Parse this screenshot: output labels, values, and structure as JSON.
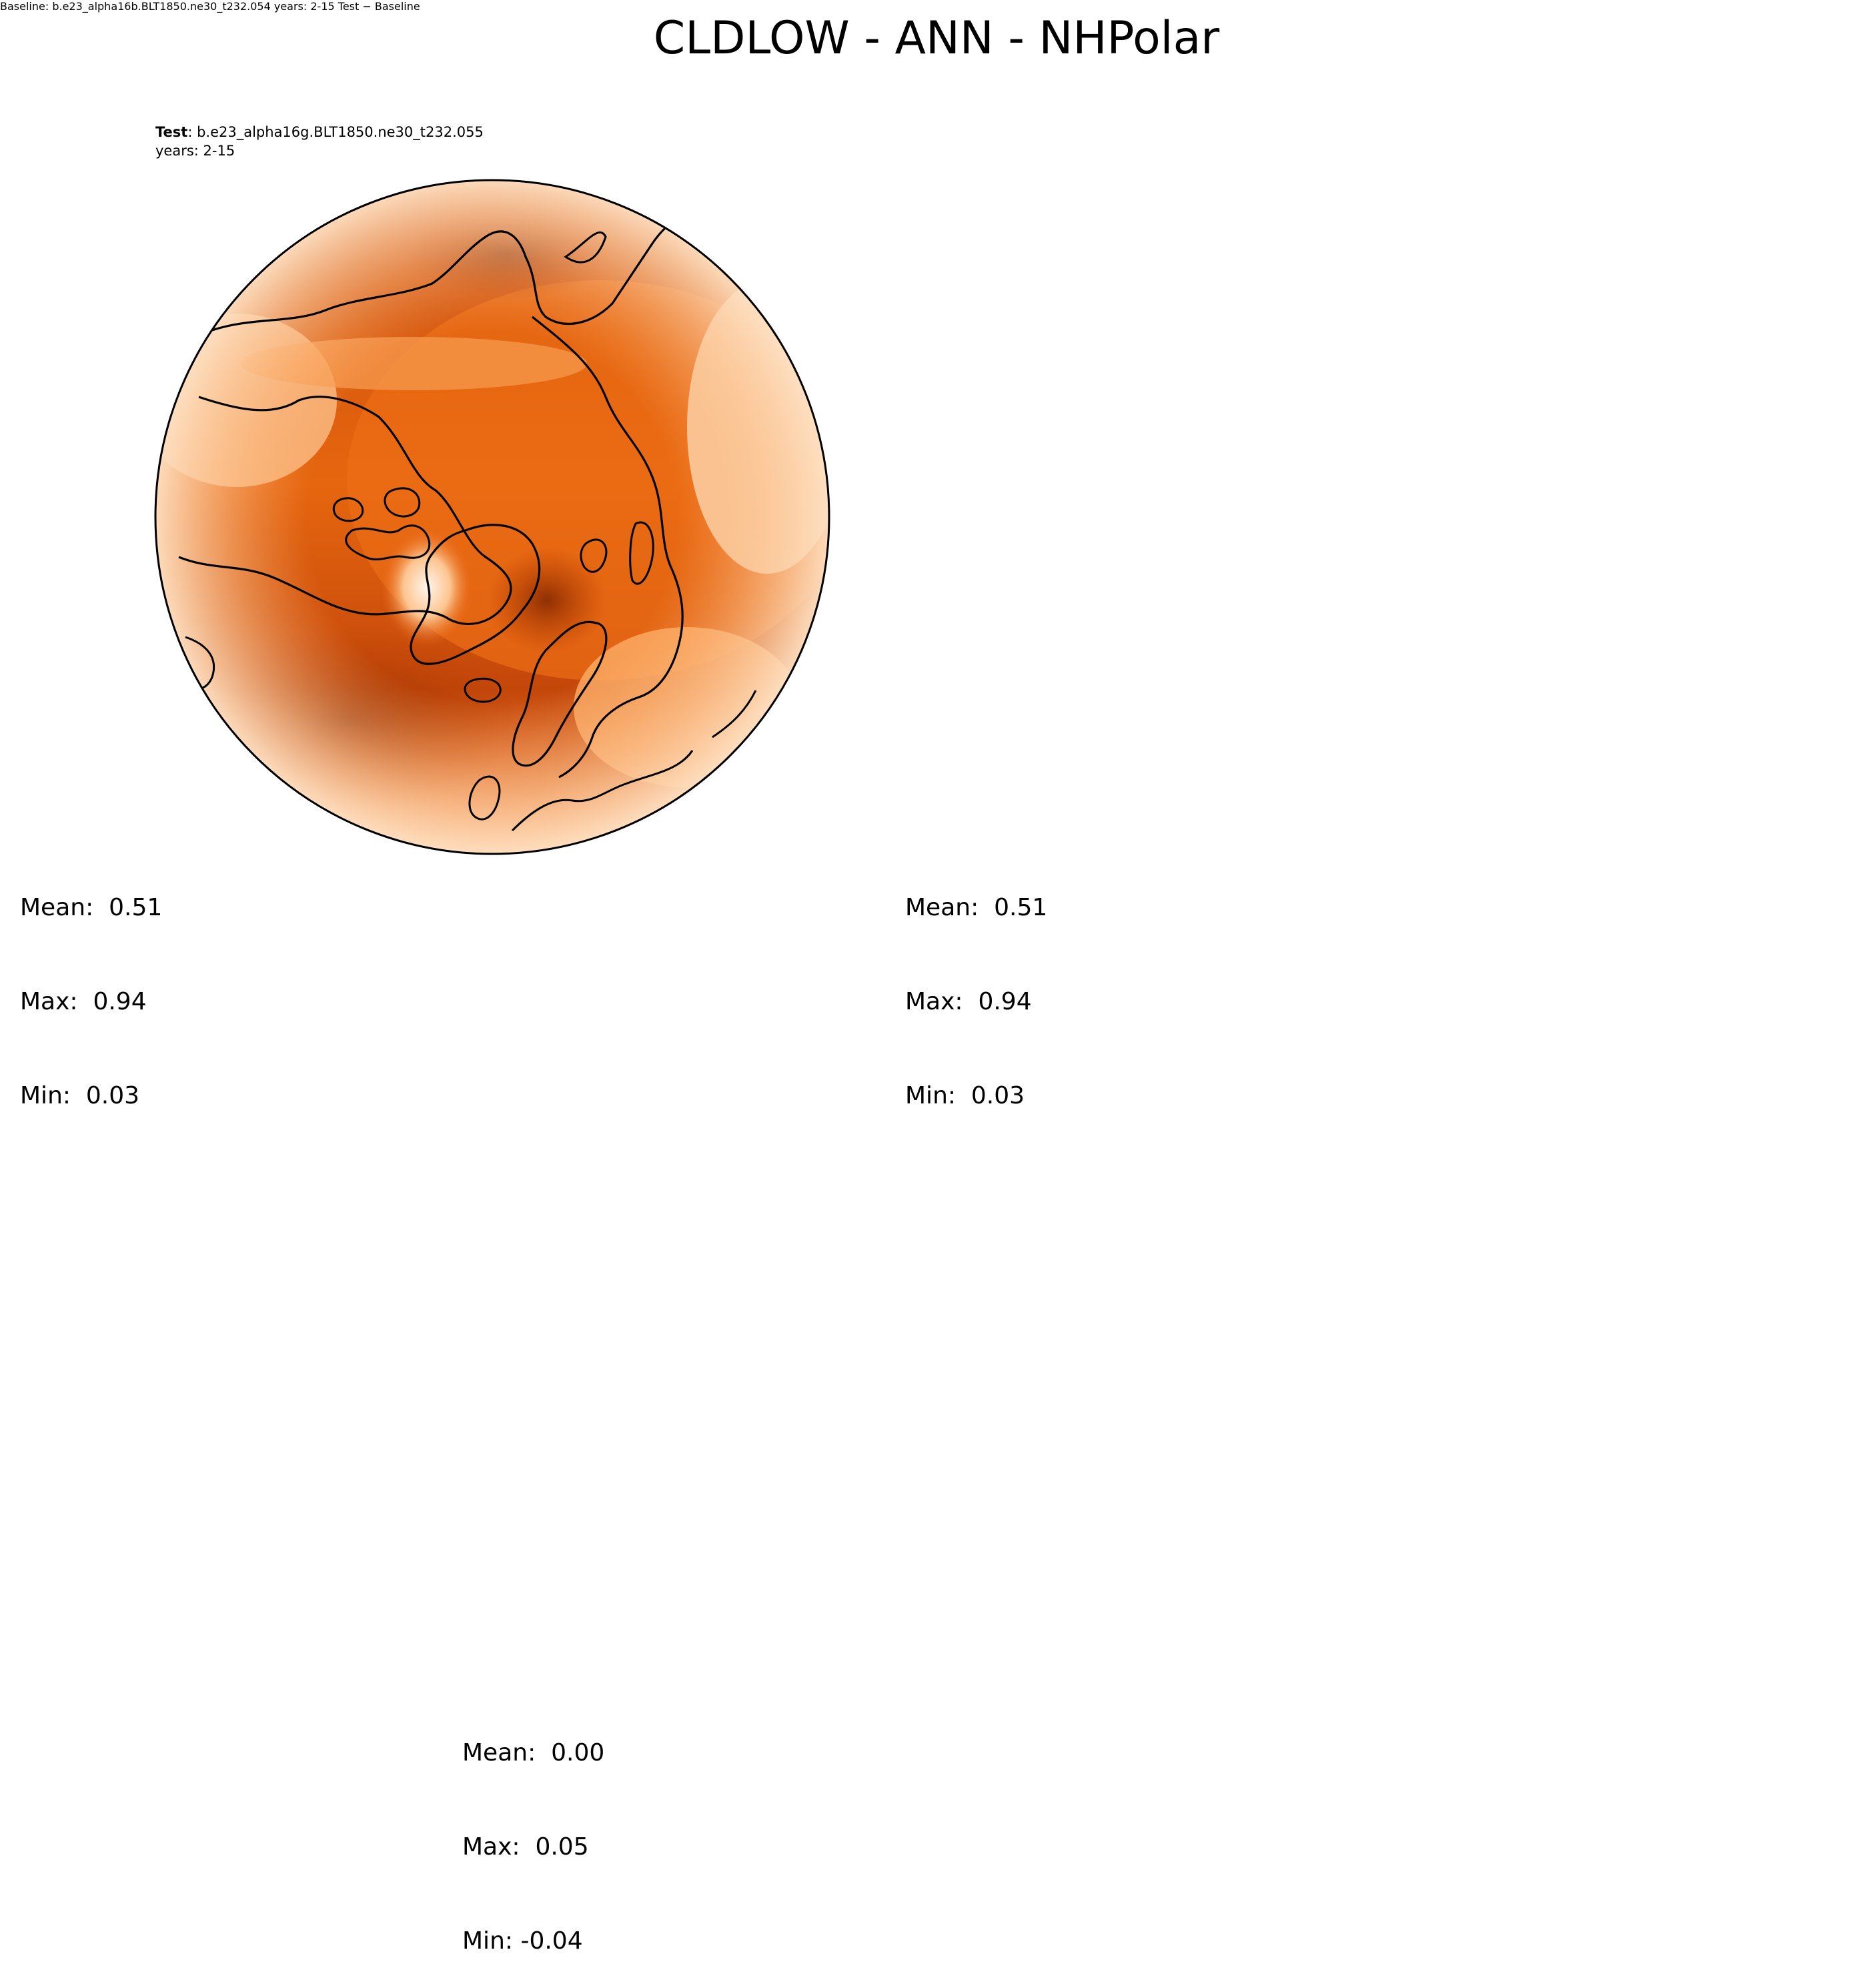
{
  "title": "CLDLOW - ANN - NHPolar",
  "panels": {
    "test": {
      "label_bold": "Test",
      "label_rest": ": b.e23_alpha16g.BLT1850.ne30_t232.055",
      "years": "years: 2-15",
      "mean": "Mean:  0.51",
      "max": "Max:  0.94",
      "min": "Min:  0.03"
    },
    "baseline": {
      "label_bold": "Baseline",
      "label_rest": ": b.e23_alpha16b.BLT1850.ne30_t232.054",
      "years": "years: 2-15",
      "mean": "Mean:  0.51",
      "max": "Max:  0.94",
      "min": "Min:  0.03"
    },
    "diff": {
      "label": "Test − Baseline",
      "mean": "Mean:  0.00",
      "max": "Max:  0.05",
      "min": "Min: -0.04"
    }
  },
  "chart_data": [
    {
      "type": "heatmap",
      "panel": "Test",
      "case": "b.e23_alpha16g.BLT1850.ne30_t232.055",
      "years": "2-15",
      "projection": "north polar stereographic",
      "stats": {
        "mean": 0.51,
        "max": 0.94,
        "min": 0.03
      },
      "colormap": "Oranges",
      "colorbar_range": [
        0.0,
        1.0
      ],
      "colorbar_ticks": [
        "0.00",
        "0.15",
        "0.30",
        "0.45",
        "0.60",
        "0.75",
        "0.90"
      ]
    },
    {
      "type": "heatmap",
      "panel": "Baseline",
      "case": "b.e23_alpha16b.BLT1850.ne30_t232.054",
      "years": "2-15",
      "projection": "north polar stereographic",
      "stats": {
        "mean": 0.51,
        "max": 0.94,
        "min": 0.03
      },
      "colormap": "Oranges",
      "colorbar_range": [
        0.0,
        1.0
      ],
      "colorbar_ticks": [
        "0.00",
        "0.15",
        "0.30",
        "0.45",
        "0.60",
        "0.75",
        "0.90"
      ]
    },
    {
      "type": "heatmap",
      "panel": "Test − Baseline",
      "projection": "north polar stereographic",
      "stats": {
        "mean": 0.0,
        "max": 0.05,
        "min": -0.04
      },
      "colormap": "BrBG",
      "colorbar_range": [
        -0.4,
        0.35
      ],
      "colorbar_ticks": [
        "−0.4",
        "−0.3",
        "−0.2",
        "−0.1",
        "0.0",
        "0.1",
        "0.2",
        "0.3"
      ]
    }
  ],
  "colors": {
    "oranges": [
      "#fff5eb",
      "#fee8d3",
      "#fdd9b4",
      "#fdc590",
      "#fdac67",
      "#fd9243",
      "#f57a25",
      "#e8620f",
      "#d54e06",
      "#b93d02",
      "#9b3203",
      "#7f2704"
    ],
    "brbg": [
      "#543005",
      "#8c510a",
      "#a86821",
      "#bf812d",
      "#d5b060",
      "#e4d092",
      "#f1e6c4",
      "#f3efe3",
      "#e3f0ee",
      "#c7eae5",
      "#91d6cb",
      "#5ab1a4",
      "#2a8a80",
      "#0b6a5e",
      "#01473d"
    ]
  }
}
